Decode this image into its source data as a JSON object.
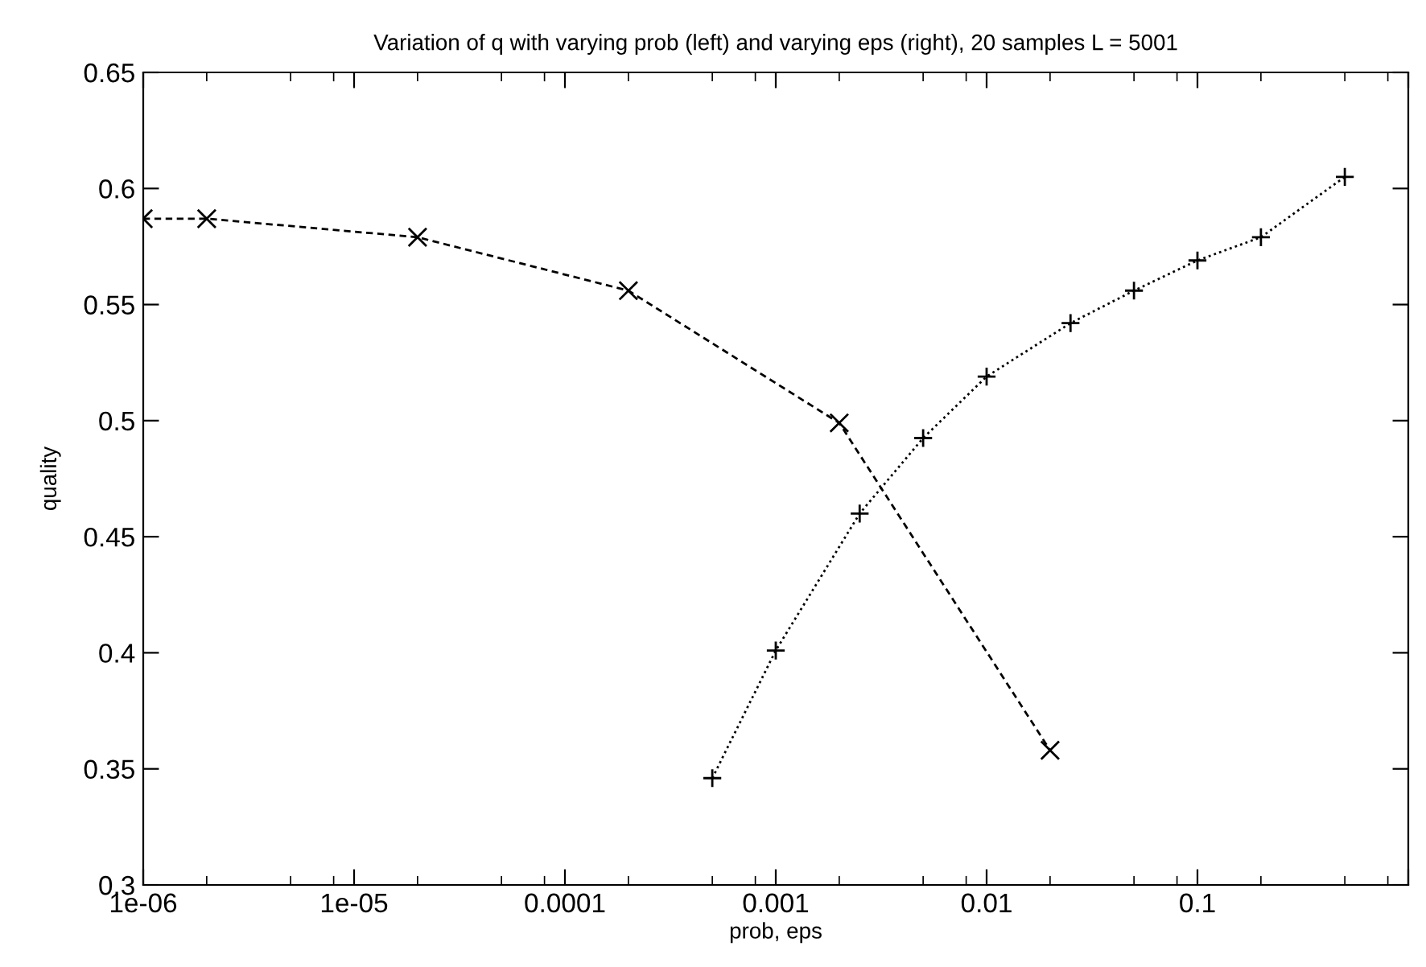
{
  "chart_data": {
    "type": "line",
    "title": "Variation of q with varying prob (left) and varying eps (right), 20 samples L = 5001",
    "xlabel": "prob, eps",
    "ylabel": "quality",
    "log": "x",
    "xlim": [
      1e-06,
      1
    ],
    "xticks": [
      {
        "value": 1e-06,
        "label": "1e-06"
      },
      {
        "value": 1e-05,
        "label": "1e-05"
      },
      0.0001,
      0.001,
      0.01,
      0.1,
      {
        "value": 1,
        "label": null
      }
    ],
    "ylim": [
      0.3,
      0.65
    ],
    "yticks": [
      0.3,
      0.35,
      0.4,
      0.45,
      0.5,
      0.55,
      0.6,
      0.65
    ],
    "grid": false,
    "legend": false,
    "series": [
      {
        "color": "#000000",
        "marker": "cross",
        "line_style": "dashed",
        "x": [
          1e-06,
          2e-06,
          2e-05,
          0.0002,
          0.002,
          0.02
        ],
        "values": [
          0.587,
          0.587,
          0.579,
          0.556,
          0.499,
          0.358
        ]
      },
      {
        "color": "#000000",
        "marker": "plus",
        "line_style": "dotted",
        "x": [
          0.0005,
          0.001,
          0.0025,
          0.005,
          0.01,
          0.025,
          0.05,
          0.1,
          0.2,
          0.5
        ],
        "values": [
          0.346,
          0.401,
          0.46,
          0.4925,
          0.519,
          0.542,
          0.556,
          0.569,
          0.579,
          0.605
        ]
      }
    ]
  }
}
